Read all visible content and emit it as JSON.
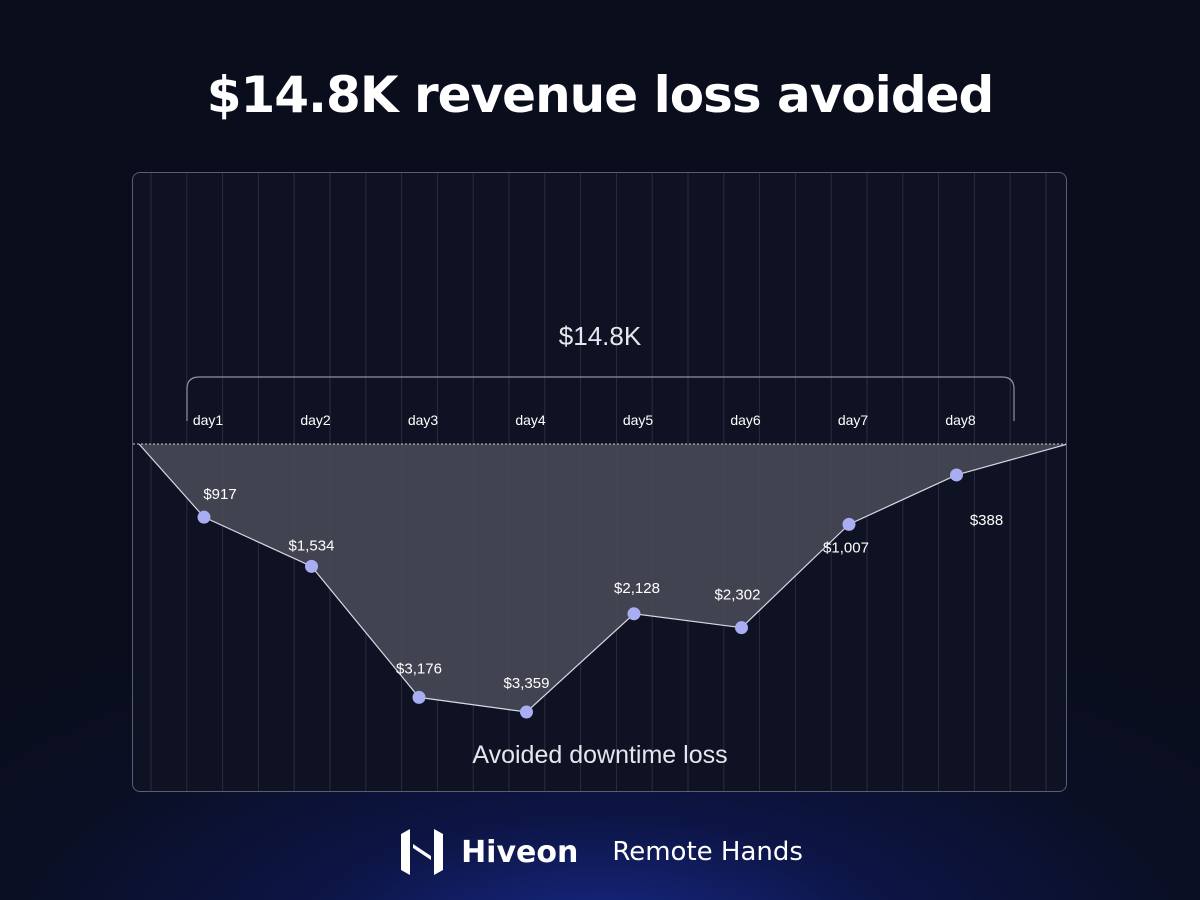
{
  "headline": "$14.8K revenue loss avoided",
  "brand": {
    "logo_icon": "hiveon-h-logo-icon",
    "name": "Hiveon",
    "product": "Remote Hands"
  },
  "colors": {
    "background": "#0a0e1f",
    "card_border": "#5a5e70",
    "area_fill": "#474a55",
    "point": "#a9aef3",
    "text": "#ffffff"
  },
  "chart_data": {
    "type": "area",
    "title": "",
    "categories": [
      "day1",
      "day2",
      "day3",
      "day4",
      "day5",
      "day6",
      "day7",
      "day8"
    ],
    "values": [
      917,
      1534,
      3176,
      3359,
      2128,
      2302,
      1007,
      388
    ],
    "value_labels": [
      "$917",
      "$1,534",
      "$3,176",
      "$3,359",
      "$2,128",
      "$2,302",
      "$1,007",
      "$388"
    ],
    "total_label": "$14.8K",
    "area_label": "Avoided downtime loss",
    "direction": "downward",
    "ylim": [
      0,
      3600
    ],
    "grid": "vertical lines",
    "legend": "none"
  }
}
